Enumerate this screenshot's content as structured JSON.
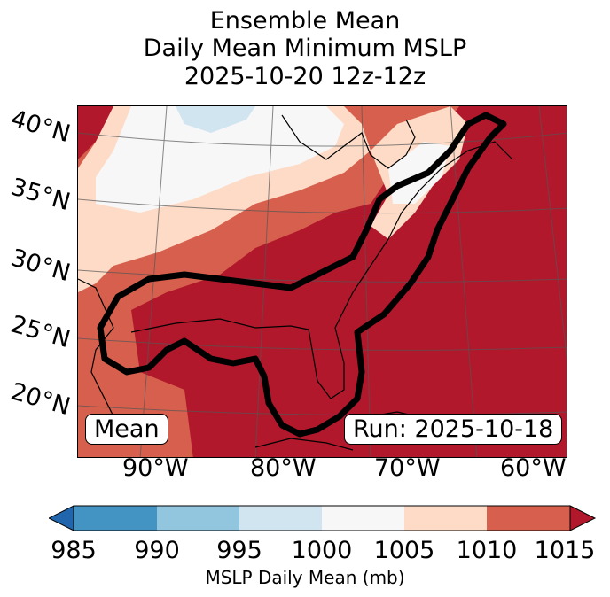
{
  "title": {
    "line1": "Ensemble Mean",
    "line2": "Daily Mean Minimum MSLP",
    "line3": "2025-10-20 12z-12z"
  },
  "map": {
    "lat_labels": [
      "40°N",
      "35°N",
      "30°N",
      "25°N",
      "20°N"
    ],
    "lon_labels": [
      "90°W",
      "80°W",
      "70°W",
      "60°W"
    ],
    "mean_box": "Mean",
    "run_box": "Run: 2025-10-18",
    "field_colors": {
      "lt_1000": "#d1e5f0",
      "1000_1005": "#f7f7f7",
      "1005_1010": "#fddbc7",
      "1010_1015": "#d6604d",
      "gt_1015": "#b2182b"
    }
  },
  "colorbar": {
    "ticks": [
      "985",
      "990",
      "995",
      "1000",
      "1005",
      "1010",
      "1015"
    ],
    "colors": [
      "#2166ac",
      "#4393c3",
      "#92c5de",
      "#d1e5f0",
      "#f7f7f7",
      "#fddbc7",
      "#d6604d",
      "#b2182b"
    ],
    "label": "MSLP Daily Mean (mb)"
  }
}
